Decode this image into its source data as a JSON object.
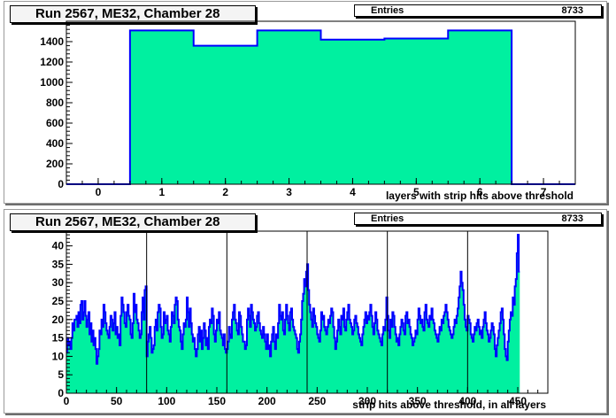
{
  "panels": [
    {
      "title": "Run 2567, ME32, Chamber 28",
      "entries_label": "Entries",
      "entries_value": "8733"
    },
    {
      "title": "Run 2567, ME32, Chamber 28",
      "entries_label": "Entries",
      "entries_value": "8733"
    }
  ],
  "chart_data": [
    {
      "type": "bar",
      "title": "Run 2567, ME32, Chamber 28",
      "xlabel": "layers with strip hits above threshold",
      "ylabel": "",
      "xlim": [
        -0.5,
        7.5
      ],
      "ylim": [
        0,
        1600
      ],
      "x_ticks": [
        0,
        1,
        2,
        3,
        4,
        5,
        6,
        7
      ],
      "y_ticks": [
        0,
        200,
        400,
        600,
        800,
        1000,
        1200,
        1400
      ],
      "bin_edges": [
        -0.5,
        0.5,
        1.5,
        2.5,
        3.5,
        4.5,
        5.5,
        6.5,
        7.5
      ],
      "values": [
        0,
        1510,
        1360,
        1510,
        1420,
        1430,
        1510,
        0
      ],
      "entries": 8733,
      "fill_color": "#00f0a0",
      "line_color": "#0000ff",
      "grid": false
    },
    {
      "type": "bar",
      "title": "Run 2567, ME32, Chamber 28",
      "xlabel": "strip hits above threshold, in all layers",
      "ylabel": "",
      "xlim": [
        0,
        480
      ],
      "ylim": [
        0,
        44
      ],
      "x_ticks": [
        0,
        50,
        100,
        150,
        200,
        250,
        300,
        350,
        400,
        450
      ],
      "y_ticks": [
        0,
        5,
        10,
        15,
        20,
        25,
        30,
        35,
        40
      ],
      "bin_width": 1,
      "layer_boundaries": [
        80,
        160,
        240,
        320,
        400
      ],
      "values": [
        11,
        15,
        13,
        14,
        12,
        15,
        19,
        17,
        20,
        20,
        21,
        18,
        22,
        19,
        24,
        25,
        20,
        22,
        25,
        21,
        18,
        20,
        22,
        16,
        19,
        14,
        17,
        13,
        15,
        12,
        8,
        10,
        12,
        17,
        16,
        20,
        18,
        24,
        22,
        19,
        17,
        16,
        15,
        18,
        21,
        20,
        17,
        19,
        22,
        16,
        18,
        15,
        16,
        13,
        21,
        26,
        24,
        22,
        19,
        18,
        22,
        24,
        21,
        20,
        16,
        15,
        19,
        27,
        22,
        24,
        20,
        19,
        17,
        15,
        16,
        22,
        26,
        20,
        28,
        29,
        10,
        14,
        16,
        18,
        15,
        11,
        12,
        13,
        18,
        20,
        17,
        22,
        24,
        23,
        18,
        15,
        16,
        22,
        19,
        20,
        21,
        17,
        16,
        14,
        18,
        22,
        21,
        19,
        24,
        26,
        25,
        20,
        18,
        17,
        14,
        12,
        16,
        19,
        18,
        20,
        26,
        22,
        18,
        23,
        19,
        16,
        14,
        15,
        12,
        10,
        12,
        16,
        18,
        14,
        17,
        12,
        15,
        19,
        17,
        13,
        15,
        12,
        18,
        20,
        19,
        23,
        21,
        16,
        14,
        17,
        20,
        19,
        22,
        17,
        16,
        15,
        13,
        16,
        12,
        11,
        12,
        14,
        18,
        16,
        15,
        20,
        22,
        24,
        20,
        19,
        17,
        16,
        22,
        21,
        18,
        16,
        14,
        14,
        12,
        13,
        20,
        23,
        21,
        18,
        24,
        22,
        20,
        19,
        17,
        18,
        21,
        22,
        19,
        17,
        16,
        15,
        18,
        16,
        14,
        12,
        16,
        12,
        13,
        10,
        14,
        16,
        18,
        14,
        12,
        16,
        15,
        19,
        24,
        21,
        20,
        22,
        17,
        16,
        20,
        24,
        21,
        19,
        17,
        22,
        23,
        20,
        18,
        17,
        16,
        15,
        12,
        11,
        14,
        16,
        20,
        25,
        27,
        31,
        29,
        33,
        35,
        28,
        24,
        22,
        20,
        18,
        23,
        21,
        19,
        18,
        16,
        15,
        14,
        17,
        22,
        20,
        21,
        18,
        17,
        16,
        18,
        20,
        19,
        21,
        23,
        22,
        18,
        15,
        12,
        14,
        17,
        20,
        18,
        16,
        21,
        20,
        23,
        18,
        17,
        20,
        22,
        24,
        20,
        19,
        18,
        16,
        17,
        20,
        21,
        19,
        18,
        16,
        15,
        14,
        13,
        16,
        18,
        20,
        22,
        19,
        21,
        20,
        22,
        24,
        21,
        18,
        16,
        19,
        22,
        20,
        17,
        16,
        15,
        14,
        13,
        16,
        18,
        17,
        20,
        26,
        21,
        17,
        15,
        20,
        18,
        22,
        21,
        18,
        16,
        14,
        15,
        13,
        16,
        18,
        20,
        19,
        17,
        16,
        21,
        22,
        19,
        20,
        18,
        16,
        15,
        13,
        14,
        15,
        17,
        16,
        20,
        23,
        21,
        19,
        20,
        18,
        17,
        22,
        24,
        20,
        19,
        18,
        21,
        20,
        23,
        20,
        19,
        17,
        16,
        15,
        14,
        16,
        18,
        17,
        20,
        19,
        21,
        22,
        24,
        22,
        20,
        18,
        17,
        16,
        15,
        16,
        18,
        20,
        19,
        21,
        23,
        26,
        29,
        33,
        30,
        28,
        24,
        20,
        18,
        17,
        21,
        20,
        19,
        16,
        15,
        14,
        16,
        18,
        17,
        19,
        20,
        18,
        16,
        17,
        15,
        18,
        20,
        22,
        19,
        17,
        16,
        14,
        15,
        17,
        19,
        18,
        16,
        12,
        10,
        13,
        15,
        17,
        19,
        22,
        23,
        20,
        16,
        12,
        10,
        9,
        14,
        17,
        20,
        22,
        21,
        26,
        24,
        29,
        31,
        38,
        43,
        33
      ],
      "entries": 8733,
      "fill_color": "#00f0a0",
      "line_color": "#0000ff",
      "grid": false
    }
  ]
}
